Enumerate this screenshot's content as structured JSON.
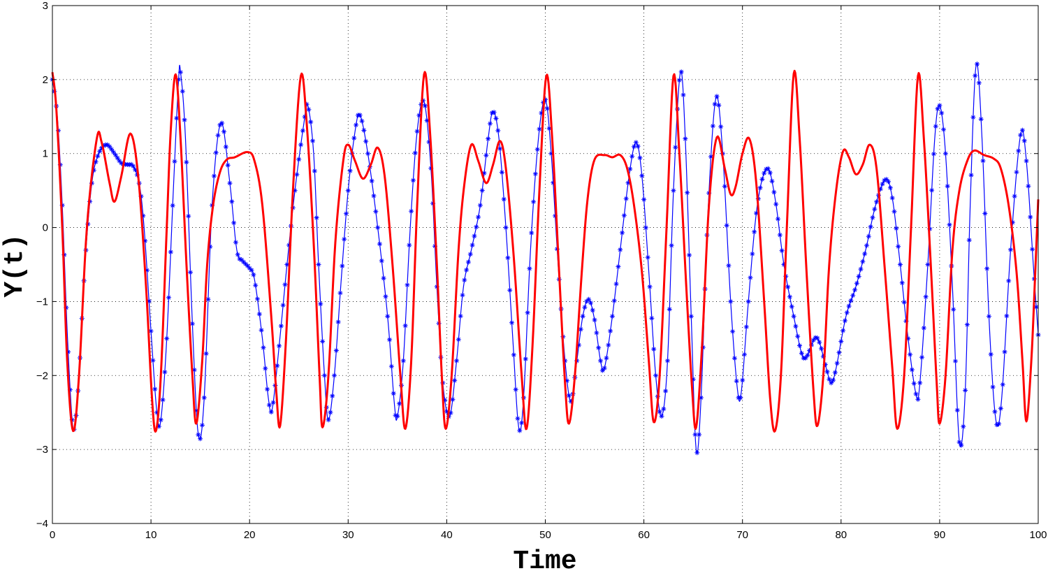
{
  "chart_data": {
    "type": "line",
    "title": "",
    "xlabel": "Time",
    "ylabel": "Υ(t)",
    "xlim": [
      0,
      100
    ],
    "ylim": [
      -4,
      3
    ],
    "xticks": [
      0,
      10,
      20,
      30,
      40,
      50,
      60,
      70,
      80,
      90,
      100
    ],
    "yticks": [
      -4,
      -3,
      -2,
      -1,
      0,
      1,
      2,
      3
    ],
    "xtick_labels": [
      "0",
      "10",
      "20",
      "30",
      "40",
      "50",
      "60",
      "70",
      "80",
      "90",
      "100"
    ],
    "ytick_labels": [
      "−4",
      "−3",
      "−2",
      "−1",
      "0",
      "1",
      "2",
      "3"
    ],
    "grid": true,
    "series": [
      {
        "color": "#0000ff",
        "style": "line-with-star-markers",
        "points": [
          [
            0.0,
            2.0
          ],
          [
            0.5,
            1.5
          ],
          [
            1.0,
            0.3
          ],
          [
            1.5,
            -1.4
          ],
          [
            2.0,
            -2.6
          ],
          [
            2.3,
            -2.65
          ],
          [
            2.7,
            -2.0
          ],
          [
            3.3,
            -0.5
          ],
          [
            4.0,
            0.6
          ],
          [
            4.7,
            1.0
          ],
          [
            5.5,
            1.12
          ],
          [
            6.3,
            1.0
          ],
          [
            7.0,
            0.87
          ],
          [
            7.7,
            0.85
          ],
          [
            8.2,
            0.83
          ],
          [
            8.8,
            0.6
          ],
          [
            9.3,
            0.0
          ],
          [
            10.0,
            -1.4
          ],
          [
            10.6,
            -2.5
          ],
          [
            11.0,
            -2.6
          ],
          [
            11.6,
            -1.5
          ],
          [
            12.3,
            0.6
          ],
          [
            12.8,
            2.0
          ],
          [
            13.0,
            2.1
          ],
          [
            13.5,
            1.2
          ],
          [
            14.2,
            -1.3
          ],
          [
            14.8,
            -2.8
          ],
          [
            15.4,
            -2.3
          ],
          [
            16.2,
            0.3
          ],
          [
            17.1,
            1.42
          ],
          [
            18.0,
            0.6
          ],
          [
            18.7,
            -0.3
          ],
          [
            19.3,
            -0.45
          ],
          [
            20.0,
            -0.55
          ],
          [
            20.5,
            -0.7
          ],
          [
            21.3,
            -1.5
          ],
          [
            21.9,
            -2.3
          ],
          [
            22.3,
            -2.45
          ],
          [
            23.0,
            -1.6
          ],
          [
            23.8,
            -0.5
          ],
          [
            24.6,
            0.5
          ],
          [
            25.5,
            1.4
          ],
          [
            25.9,
            1.65
          ],
          [
            26.5,
            1.0
          ],
          [
            27.0,
            -0.5
          ],
          [
            27.6,
            -2.0
          ],
          [
            28.0,
            -2.6
          ],
          [
            28.6,
            -2.0
          ],
          [
            29.3,
            -0.7
          ],
          [
            30.0,
            0.5
          ],
          [
            30.7,
            1.3
          ],
          [
            31.2,
            1.52
          ],
          [
            32.0,
            1.0
          ],
          [
            33.0,
            0.0
          ],
          [
            34.0,
            -1.2
          ],
          [
            34.7,
            -2.4
          ],
          [
            35.0,
            -2.55
          ],
          [
            35.6,
            -1.8
          ],
          [
            36.3,
            0.0
          ],
          [
            37.0,
            1.3
          ],
          [
            37.7,
            1.7
          ],
          [
            38.4,
            0.8
          ],
          [
            39.0,
            -0.8
          ],
          [
            39.6,
            -2.1
          ],
          [
            40.3,
            -2.55
          ],
          [
            41.0,
            -1.8
          ],
          [
            41.7,
            -0.8
          ],
          [
            42.5,
            -0.3
          ],
          [
            43.4,
            0.3
          ],
          [
            44.2,
            1.2
          ],
          [
            44.7,
            1.57
          ],
          [
            45.3,
            1.2
          ],
          [
            46.0,
            0.0
          ],
          [
            46.7,
            -1.5
          ],
          [
            47.3,
            -2.7
          ],
          [
            47.8,
            -2.3
          ],
          [
            48.5,
            -0.3
          ],
          [
            49.3,
            1.2
          ],
          [
            50.0,
            1.73
          ],
          [
            50.6,
            1.0
          ],
          [
            51.3,
            -0.5
          ],
          [
            52.0,
            -1.8
          ],
          [
            52.6,
            -2.35
          ],
          [
            53.2,
            -1.8
          ],
          [
            53.8,
            -1.2
          ],
          [
            54.4,
            -0.97
          ],
          [
            55.0,
            -1.25
          ],
          [
            55.6,
            -1.8
          ],
          [
            56.0,
            -1.9
          ],
          [
            56.8,
            -1.2
          ],
          [
            57.6,
            -0.3
          ],
          [
            58.5,
            0.7
          ],
          [
            59.2,
            1.15
          ],
          [
            59.8,
            0.7
          ],
          [
            60.5,
            -0.6
          ],
          [
            61.2,
            -2.0
          ],
          [
            61.8,
            -2.55
          ],
          [
            62.4,
            -1.8
          ],
          [
            63.0,
            0.5
          ],
          [
            63.7,
            2.1
          ],
          [
            64.2,
            1.2
          ],
          [
            64.8,
            -1.2
          ],
          [
            65.3,
            -3.0
          ],
          [
            65.8,
            -2.3
          ],
          [
            66.5,
            0.2
          ],
          [
            67.3,
            1.75
          ],
          [
            68.0,
            1.0
          ],
          [
            68.8,
            -1.0
          ],
          [
            69.5,
            -2.2
          ],
          [
            69.9,
            -2.2
          ],
          [
            70.6,
            -1.0
          ],
          [
            71.5,
            0.3
          ],
          [
            72.5,
            0.8
          ],
          [
            73.3,
            0.4
          ],
          [
            74.2,
            -0.5
          ],
          [
            75.2,
            -1.2
          ],
          [
            76.0,
            -1.7
          ],
          [
            76.5,
            -1.75
          ],
          [
            77.3,
            -1.5
          ],
          [
            77.8,
            -1.55
          ],
          [
            78.5,
            -1.9
          ],
          [
            79.0,
            -2.1
          ],
          [
            79.5,
            -1.9
          ],
          [
            80.5,
            -1.2
          ],
          [
            81.5,
            -0.8
          ],
          [
            82.5,
            -0.3
          ],
          [
            83.5,
            0.3
          ],
          [
            84.5,
            0.65
          ],
          [
            85.2,
            0.4
          ],
          [
            86.0,
            -0.5
          ],
          [
            86.8,
            -1.5
          ],
          [
            87.6,
            -2.25
          ],
          [
            88.0,
            -2.1
          ],
          [
            88.8,
            -0.5
          ],
          [
            89.5,
            1.2
          ],
          [
            90.0,
            1.65
          ],
          [
            90.6,
            1.0
          ],
          [
            91.3,
            -0.8
          ],
          [
            92.0,
            -2.9
          ],
          [
            92.6,
            -2.2
          ],
          [
            93.1,
            0.3
          ],
          [
            93.7,
            2.2
          ],
          [
            94.3,
            1.2
          ],
          [
            95.0,
            -1.2
          ],
          [
            95.7,
            -2.6
          ],
          [
            96.3,
            -2.3
          ],
          [
            97.2,
            -0.3
          ],
          [
            98.2,
            1.25
          ],
          [
            98.8,
            0.9
          ],
          [
            99.5,
            -0.5
          ],
          [
            100.0,
            -1.45
          ]
        ]
      },
      {
        "color": "#ff0000",
        "style": "solid-line",
        "points": [
          [
            0.0,
            2.1
          ],
          [
            0.4,
            1.6
          ],
          [
            1.0,
            0.0
          ],
          [
            1.5,
            -1.8
          ],
          [
            2.1,
            -2.75
          ],
          [
            2.7,
            -2.0
          ],
          [
            3.5,
            0.0
          ],
          [
            4.5,
            1.2
          ],
          [
            5.0,
            1.15
          ],
          [
            5.8,
            0.6
          ],
          [
            6.3,
            0.35
          ],
          [
            7.0,
            0.7
          ],
          [
            7.9,
            1.27
          ],
          [
            8.7,
            0.7
          ],
          [
            9.5,
            -0.8
          ],
          [
            10.1,
            -2.3
          ],
          [
            10.5,
            -2.75
          ],
          [
            11.0,
            -2.0
          ],
          [
            11.6,
            0.0
          ],
          [
            12.0,
            1.3
          ],
          [
            12.5,
            2.07
          ],
          [
            13.0,
            1.2
          ],
          [
            13.6,
            -0.5
          ],
          [
            14.2,
            -2.0
          ],
          [
            14.6,
            -2.65
          ],
          [
            15.2,
            -1.8
          ],
          [
            15.7,
            -0.5
          ],
          [
            16.3,
            0.3
          ],
          [
            17.0,
            0.75
          ],
          [
            17.7,
            0.92
          ],
          [
            18.5,
            0.95
          ],
          [
            19.8,
            1.02
          ],
          [
            20.5,
            0.9
          ],
          [
            21.3,
            0.3
          ],
          [
            22.2,
            -1.2
          ],
          [
            22.7,
            -2.2
          ],
          [
            23.1,
            -2.68
          ],
          [
            23.7,
            -1.5
          ],
          [
            24.4,
            0.5
          ],
          [
            25.2,
            2.05
          ],
          [
            25.8,
            1.4
          ],
          [
            26.5,
            -0.2
          ],
          [
            27.1,
            -2.0
          ],
          [
            27.4,
            -2.7
          ],
          [
            28.0,
            -2.0
          ],
          [
            28.7,
            -0.2
          ],
          [
            29.5,
            0.9
          ],
          [
            30.0,
            1.12
          ],
          [
            30.7,
            0.9
          ],
          [
            31.5,
            0.66
          ],
          [
            32.3,
            0.85
          ],
          [
            33.0,
            1.08
          ],
          [
            33.7,
            0.7
          ],
          [
            34.5,
            -0.5
          ],
          [
            35.3,
            -2.0
          ],
          [
            35.8,
            -2.72
          ],
          [
            36.4,
            -1.8
          ],
          [
            37.0,
            0.3
          ],
          [
            37.7,
            2.07
          ],
          [
            38.3,
            1.3
          ],
          [
            39.0,
            -0.5
          ],
          [
            39.5,
            -2.0
          ],
          [
            39.9,
            -2.72
          ],
          [
            40.5,
            -2.0
          ],
          [
            41.2,
            -0.3
          ],
          [
            41.8,
            0.6
          ],
          [
            42.5,
            1.12
          ],
          [
            43.2,
            0.9
          ],
          [
            44.0,
            0.6
          ],
          [
            44.7,
            0.85
          ],
          [
            45.4,
            1.17
          ],
          [
            46.0,
            0.8
          ],
          [
            46.8,
            -0.4
          ],
          [
            47.6,
            -2.0
          ],
          [
            48.1,
            -2.72
          ],
          [
            48.7,
            -1.6
          ],
          [
            49.4,
            0.5
          ],
          [
            50.1,
            2.05
          ],
          [
            50.7,
            1.2
          ],
          [
            51.4,
            -0.6
          ],
          [
            52.0,
            -2.1
          ],
          [
            52.4,
            -2.65
          ],
          [
            53.0,
            -2.0
          ],
          [
            53.7,
            -0.6
          ],
          [
            54.3,
            0.4
          ],
          [
            55.0,
            0.92
          ],
          [
            56.0,
            0.98
          ],
          [
            56.8,
            0.95
          ],
          [
            57.6,
            0.98
          ],
          [
            58.3,
            0.8
          ],
          [
            59.0,
            0.3
          ],
          [
            59.8,
            -0.6
          ],
          [
            60.5,
            -1.8
          ],
          [
            61.0,
            -2.63
          ],
          [
            61.6,
            -2.0
          ],
          [
            62.3,
            0.0
          ],
          [
            63.0,
            2.05
          ],
          [
            63.6,
            1.0
          ],
          [
            64.3,
            -0.8
          ],
          [
            64.9,
            -2.2
          ],
          [
            65.3,
            -2.7
          ],
          [
            65.9,
            -1.6
          ],
          [
            66.6,
            0.3
          ],
          [
            67.4,
            1.22
          ],
          [
            68.2,
            0.8
          ],
          [
            68.8,
            0.45
          ],
          [
            69.3,
            0.55
          ],
          [
            70.0,
            1.0
          ],
          [
            70.7,
            1.2
          ],
          [
            71.4,
            0.6
          ],
          [
            72.2,
            -1.0
          ],
          [
            72.8,
            -2.3
          ],
          [
            73.3,
            -2.75
          ],
          [
            73.9,
            -2.0
          ],
          [
            74.5,
            0.0
          ],
          [
            75.2,
            2.08
          ],
          [
            75.8,
            1.2
          ],
          [
            76.5,
            -0.6
          ],
          [
            77.2,
            -2.2
          ],
          [
            77.6,
            -2.68
          ],
          [
            78.2,
            -2.0
          ],
          [
            78.8,
            -0.5
          ],
          [
            79.5,
            0.5
          ],
          [
            80.2,
            1.03
          ],
          [
            80.8,
            0.95
          ],
          [
            81.5,
            0.72
          ],
          [
            82.2,
            0.85
          ],
          [
            82.9,
            1.12
          ],
          [
            83.6,
            0.8
          ],
          [
            84.4,
            -0.5
          ],
          [
            85.2,
            -1.9
          ],
          [
            85.7,
            -2.72
          ],
          [
            86.4,
            -2.0
          ],
          [
            87.1,
            0.0
          ],
          [
            87.8,
            2.05
          ],
          [
            88.4,
            1.2
          ],
          [
            89.1,
            -0.5
          ],
          [
            89.7,
            -2.1
          ],
          [
            90.0,
            -2.65
          ],
          [
            90.6,
            -2.0
          ],
          [
            91.3,
            -0.3
          ],
          [
            92.0,
            0.5
          ],
          [
            92.8,
            0.9
          ],
          [
            93.5,
            1.04
          ],
          [
            94.5,
            0.98
          ],
          [
            95.5,
            0.93
          ],
          [
            96.2,
            0.8
          ],
          [
            97.0,
            0.3
          ],
          [
            97.8,
            -0.6
          ],
          [
            98.4,
            -1.8
          ],
          [
            98.8,
            -2.62
          ],
          [
            99.3,
            -1.8
          ],
          [
            99.7,
            -0.6
          ],
          [
            100.0,
            0.38
          ]
        ]
      }
    ]
  }
}
